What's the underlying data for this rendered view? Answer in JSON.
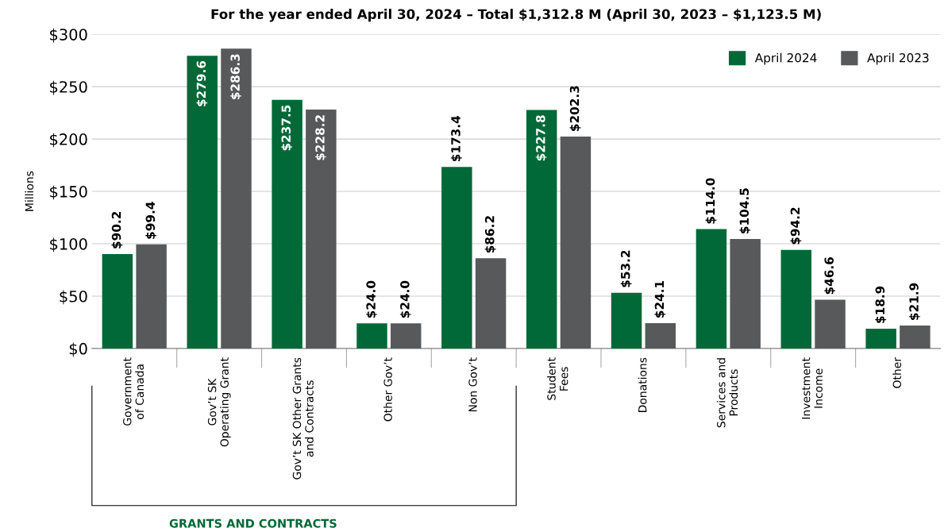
{
  "chart_data": {
    "type": "bar",
    "title": "For the year ended April 30, 2024 – Total $1,312.8 M (April 30, 2023 – $1,123.5 M)",
    "ylabel": "Millions",
    "categories": [
      "Government\nof Canada",
      "Gov’t SK\nOperating Grant",
      "Gov’t SK Other Grants\nand Contracts",
      "Other Gov’t",
      "Non Gov’t",
      "Student\nFees",
      "Donations",
      "Services and\nProducts",
      "Investment\nIncome",
      "Other"
    ],
    "series": [
      {
        "name": "April 2024",
        "color": "#006937",
        "values": [
          90.2,
          279.6,
          237.5,
          24.0,
          173.4,
          227.8,
          53.2,
          114.0,
          94.2,
          18.9
        ],
        "value_labels": [
          "$90.2",
          "$279.6",
          "$237.5",
          "$24.0",
          "$173.4",
          "$227.8",
          "$53.2",
          "$114.0",
          "$94.2",
          "$18.9"
        ]
      },
      {
        "name": "April 2023",
        "color": "#58595b",
        "values": [
          99.4,
          286.3,
          228.2,
          24.0,
          86.2,
          202.3,
          24.1,
          104.5,
          46.6,
          21.9
        ],
        "value_labels": [
          "$99.4",
          "$286.3",
          "$228.2",
          "$24.0",
          "$86.2",
          "$202.3",
          "$24.1",
          "$104.5",
          "$46.6",
          "$21.9"
        ]
      }
    ],
    "ylim": [
      0,
      300
    ],
    "yticks": [
      {
        "value": 0,
        "label": "$0"
      },
      {
        "value": 50,
        "label": "$50"
      },
      {
        "value": 100,
        "label": "$100"
      },
      {
        "value": 150,
        "label": "$150"
      },
      {
        "value": 200,
        "label": "$200"
      },
      {
        "value": 250,
        "label": "$250"
      },
      {
        "value": 300,
        "label": "$300"
      }
    ],
    "grid": "y",
    "legend": "top right",
    "annotations": [
      "GRANTS AND CONTRACTS"
    ]
  }
}
